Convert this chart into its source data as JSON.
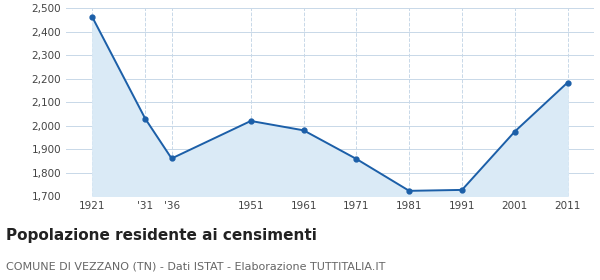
{
  "years": [
    1921,
    1931,
    1936,
    1951,
    1961,
    1971,
    1981,
    1991,
    2001,
    2011
  ],
  "population": [
    2462,
    2030,
    1860,
    2020,
    1980,
    1858,
    1722,
    1726,
    1975,
    2184
  ],
  "x_labels": [
    "1921",
    "'31",
    "'36",
    "1951",
    "1961",
    "1971",
    "1981",
    "1991",
    "2001",
    "2011"
  ],
  "ylim": [
    1700,
    2500
  ],
  "yticks": [
    1700,
    1800,
    1900,
    2000,
    2100,
    2200,
    2300,
    2400,
    2500
  ],
  "line_color": "#1c5fa8",
  "fill_color": "#daeaf6",
  "marker_color": "#1c5fa8",
  "grid_color_h": "#c8d8e8",
  "grid_color_v": "#c8d8e8",
  "bg_color": "#ffffff",
  "title": "Popolazione residente ai censimenti",
  "subtitle": "COMUNE DI VEZZANO (TN) - Dati ISTAT - Elaborazione TUTTITALIA.IT",
  "title_fontsize": 11,
  "subtitle_fontsize": 8,
  "tick_fontsize": 7.5
}
